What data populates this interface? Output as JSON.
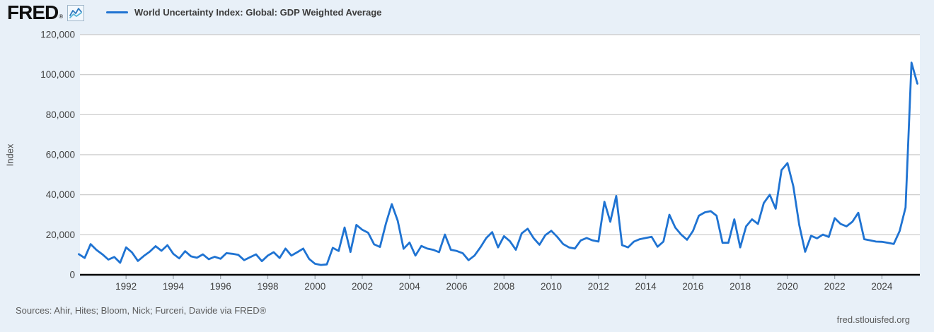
{
  "header": {
    "logo_text": "FRED",
    "registered_mark": "®",
    "legend_label": "World Uncertainty Index: Global: GDP Weighted Average"
  },
  "colors": {
    "page_background": "#e8f0f8",
    "plot_background": "#ffffff",
    "series_line": "#1f73d2",
    "grid_line": "#c8c8c8",
    "axis_line": "#000000",
    "tick_text": "#424242",
    "icon_line_blue": "#2e7bbf",
    "icon_line_teal": "#5bb8d8"
  },
  "axis": {
    "y_title": "Index"
  },
  "footer": {
    "sources_text": "Sources: Ahir, Hites; Bloom, Nick; Furceri, Davide via FRED®",
    "site_link": "fred.stlouisfed.org"
  },
  "chart_data": {
    "type": "line",
    "title": "World Uncertainty Index: Global: GDP Weighted Average",
    "ylabel": "Index",
    "ylim": [
      0,
      120000
    ],
    "y_tick_step": 20000,
    "y_tick_labels": [
      "0",
      "20,000",
      "40,000",
      "60,000",
      "80,000",
      "100,000",
      "120,000"
    ],
    "x_tick_years": [
      1992,
      1994,
      1996,
      1998,
      2000,
      2002,
      2004,
      2006,
      2008,
      2010,
      2012,
      2014,
      2016,
      2018,
      2020,
      2022,
      2024
    ],
    "frequency": "quarterly",
    "x_start": "1990 Q1",
    "x_end": "2025 Q3",
    "grid": "horizontal",
    "legend_position": "top-left",
    "series": [
      {
        "name": "World Uncertainty Index: Global: GDP Weighted Average",
        "color": "#1f73d2",
        "values": [
          10300,
          8400,
          15300,
          12400,
          10200,
          7600,
          8900,
          6000,
          13700,
          11200,
          6900,
          9400,
          11500,
          14300,
          12000,
          14800,
          10500,
          8200,
          11800,
          9200,
          8500,
          10200,
          7800,
          9000,
          8000,
          10800,
          10500,
          10000,
          7300,
          8800,
          10200,
          6800,
          9600,
          11300,
          8400,
          13100,
          9600,
          11300,
          13100,
          7900,
          5500,
          4900,
          5200,
          13500,
          11900,
          23600,
          11400,
          24900,
          22500,
          21000,
          15200,
          13900,
          25600,
          35300,
          27000,
          13000,
          16100,
          9600,
          14400,
          13100,
          12500,
          11300,
          20100,
          12500,
          11900,
          10800,
          7300,
          9600,
          13700,
          18400,
          21300,
          13700,
          19300,
          16800,
          12500,
          20700,
          23000,
          18400,
          15000,
          19800,
          22000,
          19000,
          15400,
          13700,
          13100,
          17200,
          18400,
          17200,
          16600,
          36500,
          26500,
          39400,
          14800,
          13700,
          16600,
          17800,
          18400,
          19000,
          14000,
          16600,
          30000,
          23600,
          20100,
          17500,
          21900,
          29500,
          31200,
          31800,
          29500,
          16000,
          16000,
          27700,
          13700,
          24200,
          27700,
          25400,
          35900,
          40000,
          33000,
          52300,
          55800,
          44200,
          24800,
          11500,
          19500,
          18200,
          20100,
          18900,
          28300,
          25400,
          24200,
          26500,
          31000,
          17800,
          17200,
          16600,
          16500,
          16000,
          15400,
          21900,
          33600,
          106000,
          95500
        ]
      }
    ]
  }
}
